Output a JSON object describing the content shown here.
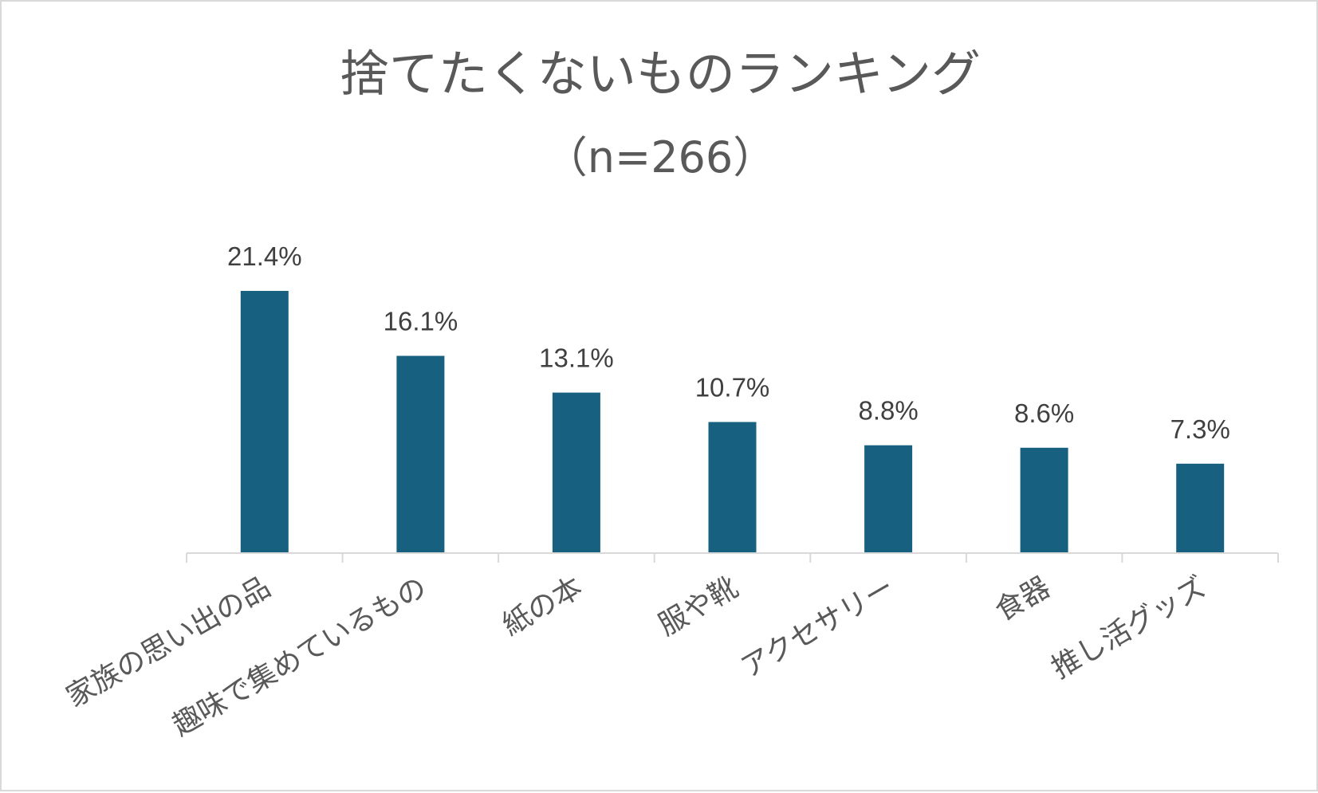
{
  "chart_data": {
    "type": "bar",
    "title": "捨てたくないものランキング",
    "subtitle": "（n=266）",
    "categories": [
      "家族の思い出の品",
      "趣味で集めているもの",
      "紙の本",
      "服や靴",
      "アクセサリー",
      "食器",
      "推し活グッズ"
    ],
    "values": [
      21.4,
      16.1,
      13.1,
      10.7,
      8.8,
      8.6,
      7.3
    ],
    "data_labels": [
      "21.4%",
      "16.1%",
      "13.1%",
      "10.7%",
      "8.8%",
      "8.6%",
      "7.3%"
    ],
    "xlabel": "",
    "ylabel": "",
    "ylim": [
      0,
      21.4
    ],
    "grid": false,
    "legend": "none",
    "bar_color": "#17607f",
    "axis_color": "#d9d9d9"
  }
}
